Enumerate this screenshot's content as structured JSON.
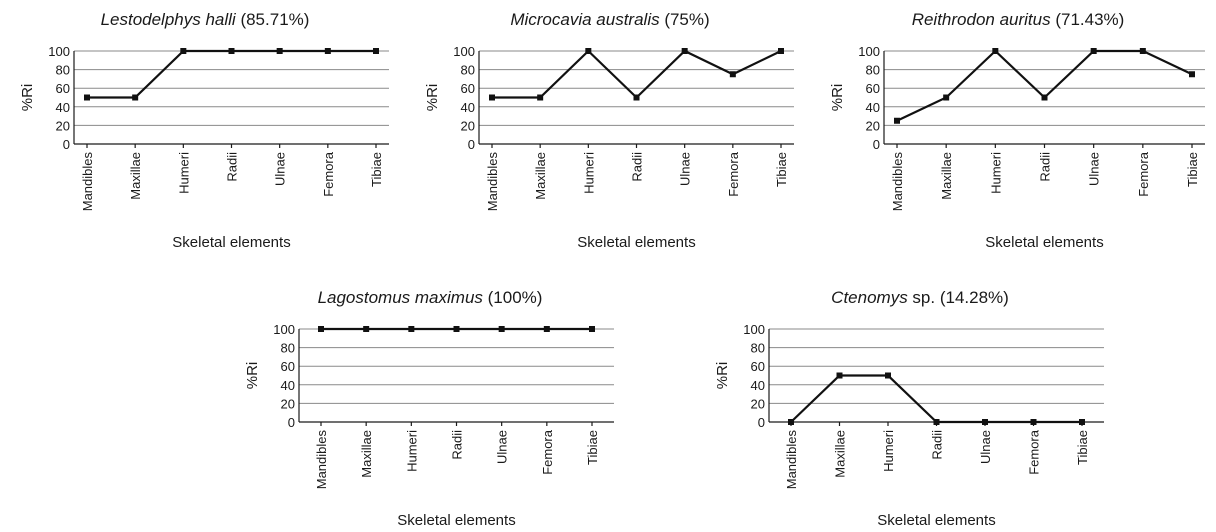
{
  "chart_data": [
    {
      "type": "line",
      "title": {
        "species": "Lestodelphys halli",
        "suffix": " (85.71%)"
      },
      "xlabel": "Skeletal elements",
      "ylabel": "%Ri",
      "categories": [
        "Mandibles",
        "Maxillae",
        "Humeri",
        "Radii",
        "Ulnae",
        "Femora",
        "Tibiae"
      ],
      "values": [
        50,
        50,
        100,
        100,
        100,
        100,
        100
      ],
      "ylim": [
        0,
        100
      ],
      "yticks": [
        0,
        20,
        40,
        60,
        80,
        100
      ],
      "grid": true
    },
    {
      "type": "line",
      "title": {
        "species": "Microcavia australis",
        "suffix": " (75%)"
      },
      "xlabel": "Skeletal elements",
      "ylabel": "%Ri",
      "categories": [
        "Mandibles",
        "Maxillae",
        "Humeri",
        "Radii",
        "Ulnae",
        "Femora",
        "Tibiae"
      ],
      "values": [
        50,
        50,
        100,
        50,
        100,
        75,
        100
      ],
      "ylim": [
        0,
        100
      ],
      "yticks": [
        0,
        20,
        40,
        60,
        80,
        100
      ],
      "grid": true
    },
    {
      "type": "line",
      "title": {
        "species": "Reithrodon auritus",
        "suffix": " (71.43%)"
      },
      "xlabel": "Skeletal elements",
      "ylabel": "%Ri",
      "categories": [
        "Mandibles",
        "Maxillae",
        "Humeri",
        "Radii",
        "Ulnae",
        "Femora",
        "Tibiae"
      ],
      "values": [
        25,
        50,
        100,
        50,
        100,
        100,
        75
      ],
      "ylim": [
        0,
        100
      ],
      "yticks": [
        0,
        20,
        40,
        60,
        80,
        100
      ],
      "grid": true
    },
    {
      "type": "line",
      "title": {
        "species": "Lagostomus maximus",
        "suffix": " (100%)"
      },
      "xlabel": "Skeletal elements",
      "ylabel": "%Ri",
      "categories": [
        "Mandibles",
        "Maxillae",
        "Humeri",
        "Radii",
        "Ulnae",
        "Femora",
        "Tibiae"
      ],
      "values": [
        100,
        100,
        100,
        100,
        100,
        100,
        100
      ],
      "ylim": [
        0,
        100
      ],
      "yticks": [
        0,
        20,
        40,
        60,
        80,
        100
      ],
      "grid": true
    },
    {
      "type": "line",
      "title": {
        "species": "Ctenomys",
        "suffix": " sp. (14.28%)"
      },
      "xlabel": "Skeletal elements",
      "ylabel": "%Ri",
      "categories": [
        "Mandibles",
        "Maxillae",
        "Humeri",
        "Radii",
        "Ulnae",
        "Femora",
        "Tibiae"
      ],
      "values": [
        0,
        50,
        50,
        0,
        0,
        0,
        0
      ],
      "ylim": [
        0,
        100
      ],
      "yticks": [
        0,
        20,
        40,
        60,
        80,
        100
      ],
      "grid": true
    }
  ]
}
